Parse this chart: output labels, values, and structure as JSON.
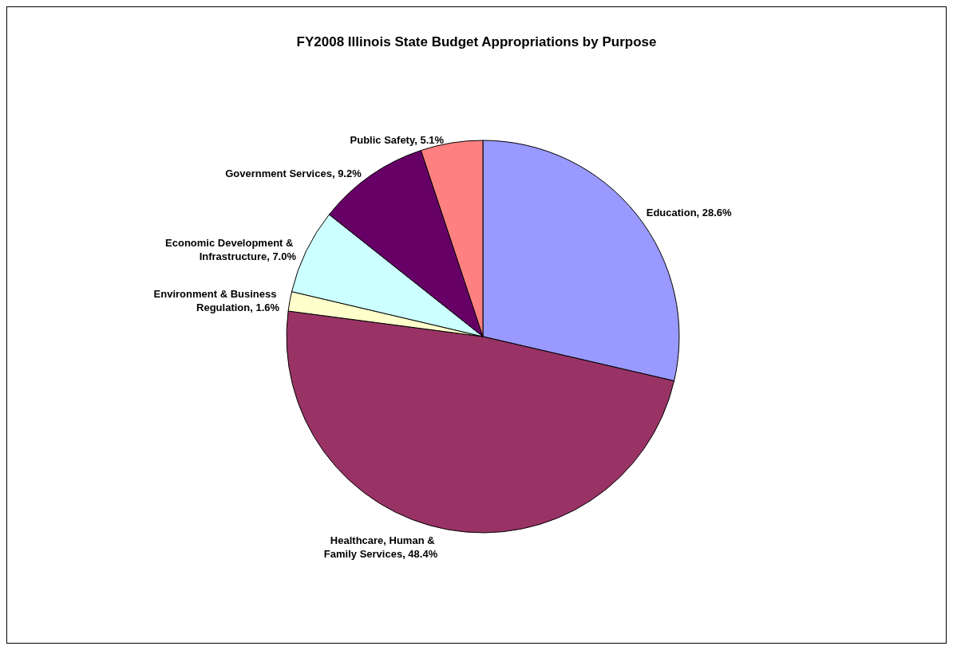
{
  "chart_data": {
    "type": "pie",
    "title": "FY2008 Illinois State Budget Appropriations by Purpose",
    "categories": [
      "Education",
      "Healthcare, Human & Family Services",
      "Environment & Business Regulation",
      "Economic Development & Infrastructure",
      "Government Services",
      "Public Safety"
    ],
    "values": [
      28.6,
      48.4,
      1.6,
      7.0,
      9.2,
      5.1
    ],
    "colors": [
      "#9999ff",
      "#993366",
      "#ffffcc",
      "#ccffff",
      "#660066",
      "#ff8080"
    ],
    "value_labels": [
      "28.6%",
      "48.4%",
      "1.6%",
      "7.0%",
      "9.2%",
      "5.1%"
    ],
    "legend": false
  }
}
